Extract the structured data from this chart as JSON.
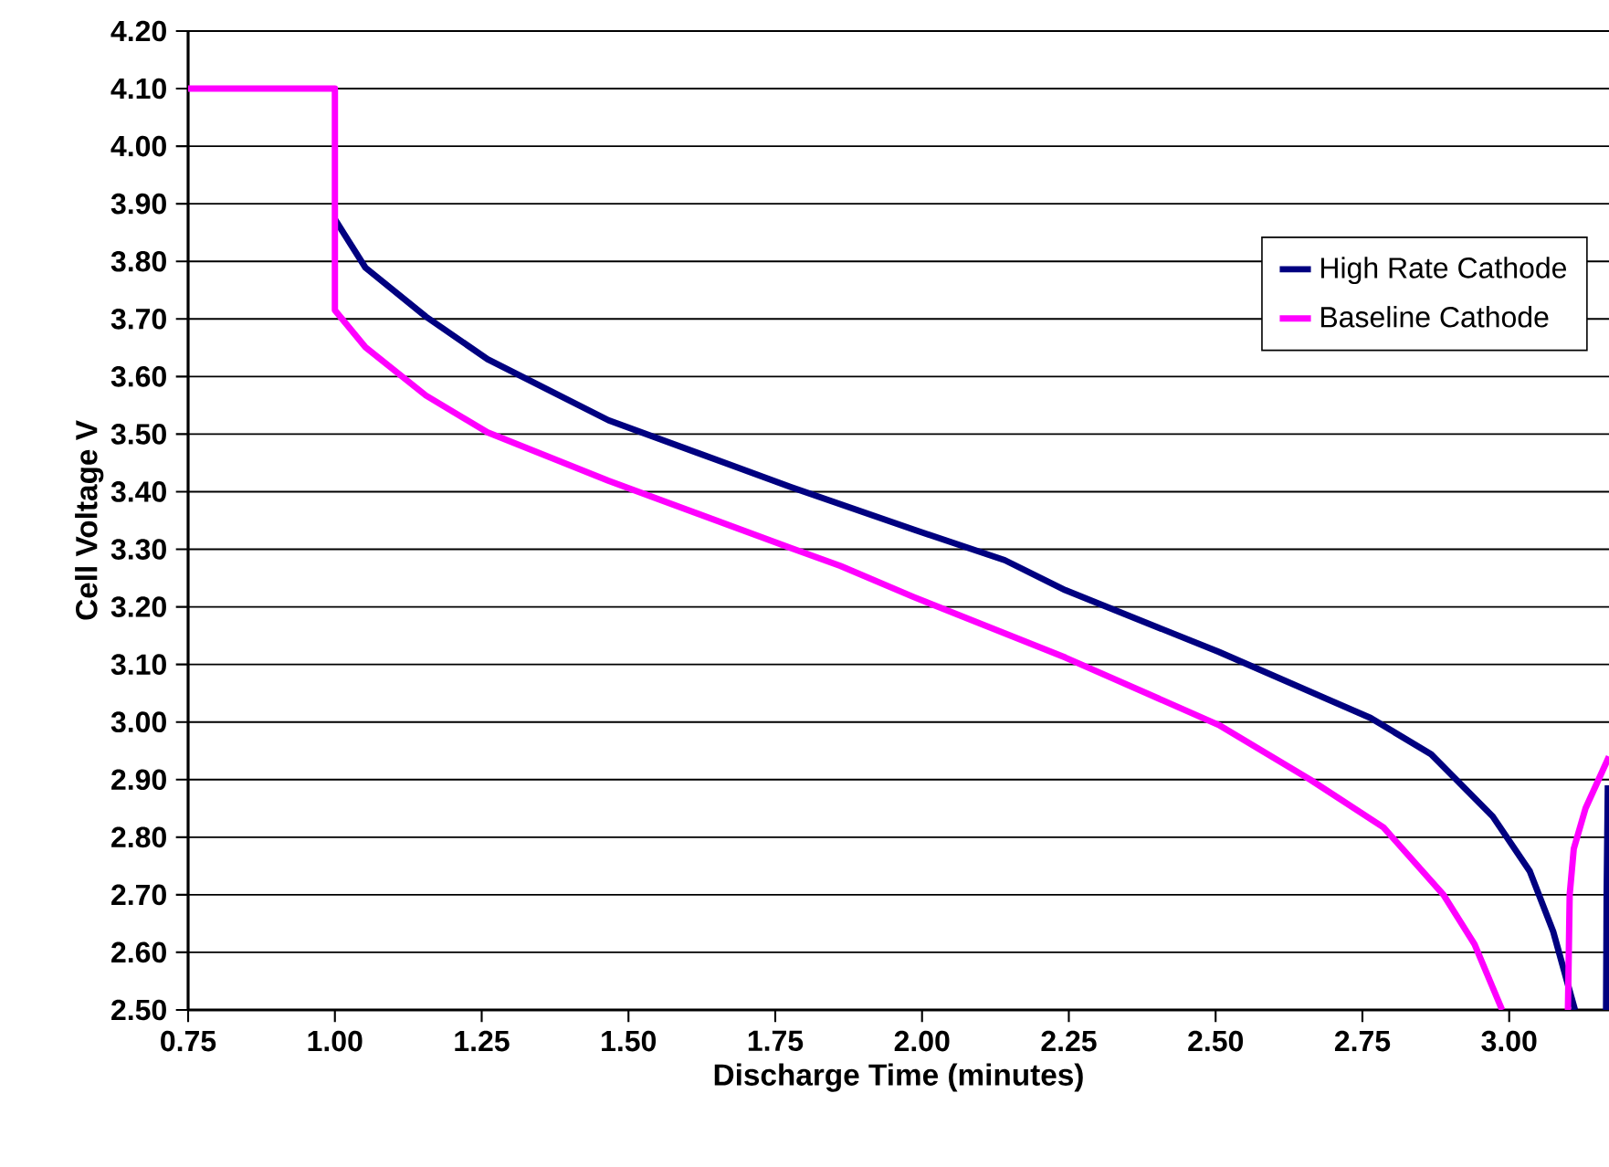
{
  "chart_data": {
    "type": "line",
    "xlabel": "Discharge Time (minutes)",
    "ylabel": "Cell Voltage V",
    "xlim": [
      0.75,
      3.17
    ],
    "xticks": [
      {
        "value": 0.75,
        "label": "0.75"
      },
      {
        "value": 1.0,
        "label": "1.00"
      },
      {
        "value": 1.25,
        "label": "1.25"
      },
      {
        "value": 1.5,
        "label": "1.50"
      },
      {
        "value": 1.75,
        "label": "1.75"
      },
      {
        "value": 2.0,
        "label": "2.00"
      },
      {
        "value": 2.25,
        "label": "2.25"
      },
      {
        "value": 2.5,
        "label": "2.50"
      },
      {
        "value": 2.75,
        "label": "2.75"
      },
      {
        "value": 3.0,
        "label": "3.00"
      }
    ],
    "ylim": [
      2.5,
      4.2
    ],
    "yticks": [
      {
        "value": 2.5,
        "label": "2.50"
      },
      {
        "value": 2.6,
        "label": "2.60"
      },
      {
        "value": 2.7,
        "label": "2.70"
      },
      {
        "value": 2.8,
        "label": "2.80"
      },
      {
        "value": 2.9,
        "label": "2.90"
      },
      {
        "value": 3.0,
        "label": "3.00"
      },
      {
        "value": 3.1,
        "label": "3.10"
      },
      {
        "value": 3.2,
        "label": "3.20"
      },
      {
        "value": 3.3,
        "label": "3.30"
      },
      {
        "value": 3.4,
        "label": "3.40"
      },
      {
        "value": 3.5,
        "label": "3.50"
      },
      {
        "value": 3.6,
        "label": "3.60"
      },
      {
        "value": 3.7,
        "label": "3.70"
      },
      {
        "value": 3.8,
        "label": "3.80"
      },
      {
        "value": 3.9,
        "label": "3.90"
      },
      {
        "value": 4.0,
        "label": "4.00"
      },
      {
        "value": 4.1,
        "label": "4.10"
      },
      {
        "value": 4.2,
        "label": "4.20"
      }
    ],
    "grid": "y",
    "legend": "top right",
    "marker": "none",
    "line_style": "solid",
    "series": [
      {
        "name": "High Rate Cathode",
        "color": "#000080",
        "x": [
          1.0,
          1.052,
          1.155,
          1.26,
          1.466,
          1.777,
          1.986,
          2.141,
          2.244,
          2.505,
          2.764,
          2.867,
          2.972,
          3.035,
          3.075,
          3.112,
          3.14,
          3.165,
          3.166,
          3.168
        ],
        "values": [
          3.873,
          3.789,
          3.704,
          3.63,
          3.524,
          3.408,
          3.334,
          3.281,
          3.229,
          3.122,
          3.007,
          2.944,
          2.836,
          2.741,
          2.636,
          2.5,
          null,
          2.5,
          2.7,
          2.89
        ]
      },
      {
        "name": "Baseline Cathode",
        "color": "#ff00ff",
        "x": [
          0.75,
          1.0,
          1.0,
          1.052,
          1.155,
          1.26,
          1.466,
          1.777,
          1.861,
          1.986,
          2.244,
          2.505,
          2.661,
          2.786,
          2.888,
          2.941,
          2.988,
          3.05,
          3.1,
          3.103,
          3.11,
          3.13,
          3.17
        ],
        "values": [
          4.1,
          4.1,
          3.715,
          3.651,
          3.567,
          3.503,
          3.419,
          3.302,
          3.271,
          3.217,
          3.112,
          2.995,
          2.9,
          2.817,
          2.7,
          2.614,
          2.5,
          null,
          2.5,
          2.7,
          2.78,
          2.85,
          2.94
        ]
      }
    ]
  }
}
